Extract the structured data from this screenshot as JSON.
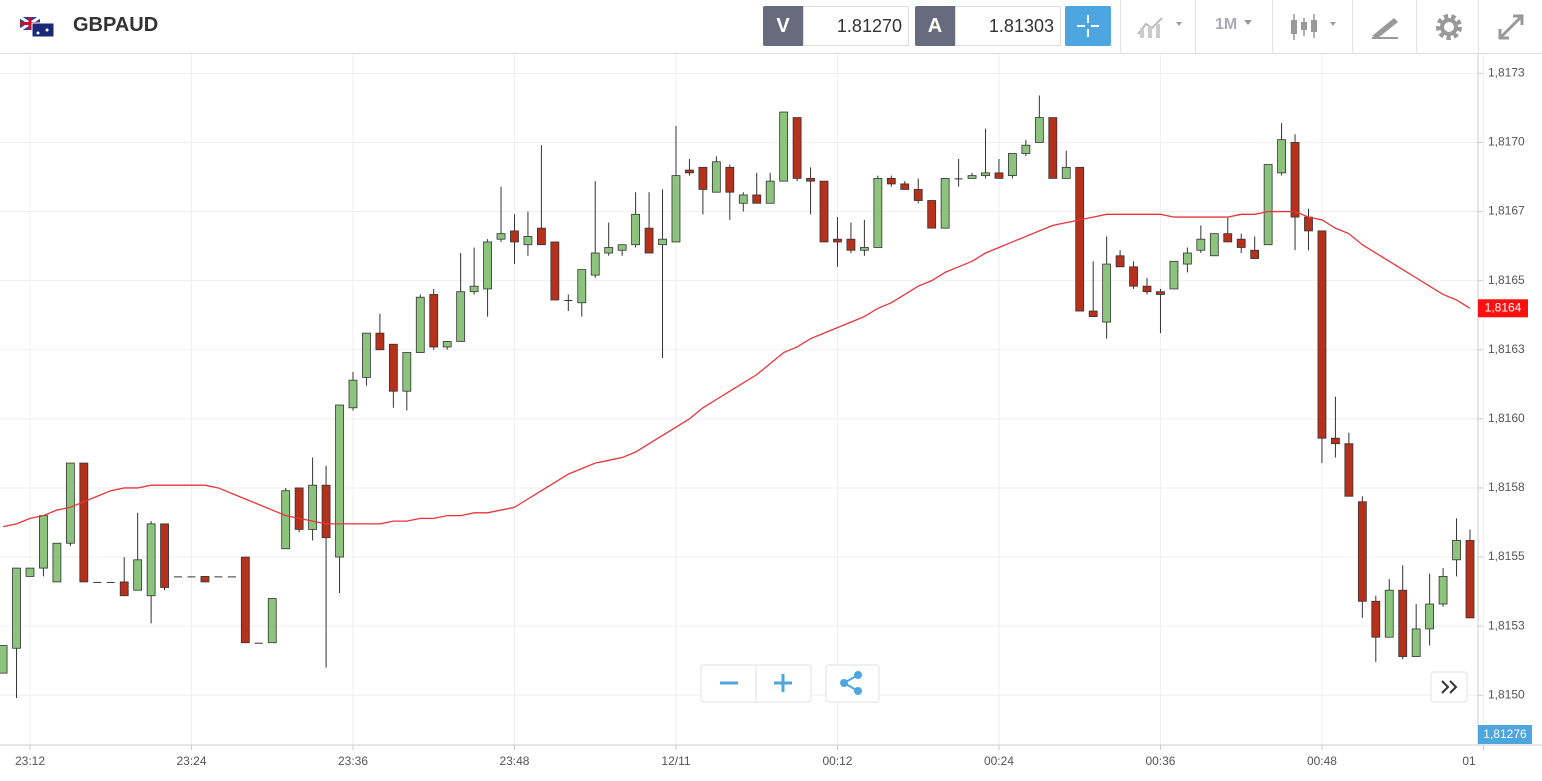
{
  "header": {
    "symbol": "GBPAUD",
    "sell_label": "V",
    "sell_price": "1.81270",
    "buy_label": "A",
    "buy_price": "1.81303",
    "timeframe": "1M"
  },
  "chart_data": {
    "type": "candlestick",
    "categories": [
      null,
      null,
      "23:12",
      null,
      null,
      null,
      null,
      null,
      null,
      null,
      null,
      null,
      null,
      null,
      "23:24",
      null,
      null,
      null,
      null,
      null,
      null,
      null,
      null,
      null,
      null,
      null,
      "23:36",
      null,
      null,
      null,
      null,
      null,
      null,
      null,
      null,
      null,
      null,
      null,
      "23:48",
      null,
      null,
      null,
      null,
      null,
      null,
      null,
      null,
      null,
      null,
      null,
      "12/11",
      null,
      null,
      null,
      null,
      null,
      null,
      null,
      null,
      null,
      null,
      null,
      "00:12",
      null,
      null,
      null,
      null,
      null,
      null,
      null,
      null,
      null,
      null,
      null,
      "00:24",
      null,
      null,
      null,
      null,
      null,
      null,
      null,
      null,
      null,
      null,
      null,
      "00:36",
      null,
      null,
      null,
      null,
      null,
      null,
      null,
      null,
      null,
      null,
      null,
      "00:48",
      null,
      null,
      null,
      null,
      null,
      null,
      null,
      null,
      null,
      null,
      null,
      "01"
    ],
    "open": [
      1.81508,
      1.81517,
      1.81543,
      1.81546,
      1.81541,
      1.81555,
      1.81584,
      1.81541,
      1.81541,
      1.81541,
      1.81538,
      1.81536,
      1.81562,
      1.81543,
      1.81543,
      1.81543,
      1.81543,
      1.81543,
      1.8155,
      1.81519,
      1.81519,
      1.81553,
      1.81575,
      1.8156,
      1.81576,
      1.8155,
      1.81604,
      1.81615,
      1.81631,
      1.81627,
      1.8161,
      1.81624,
      1.81645,
      1.81626,
      1.81628,
      1.81646,
      1.81647,
      1.81665,
      1.81668,
      1.81663,
      1.81669,
      1.81664,
      1.81643,
      1.81642,
      1.81652,
      1.8166,
      1.81661,
      1.81663,
      1.81669,
      1.81663,
      1.81664,
      1.8169,
      1.81691,
      1.81682,
      1.81691,
      1.81678,
      1.81681,
      1.81678,
      1.81686,
      1.81709,
      1.81687,
      1.81686,
      1.81665,
      1.81665,
      1.81661,
      1.81662,
      1.81687,
      1.81685,
      1.81683,
      1.81679,
      1.81669,
      1.81687,
      1.81687,
      1.81688,
      1.81689,
      1.81688,
      1.81696,
      1.817,
      1.81709,
      1.81687,
      1.81691,
      1.81639,
      1.81635,
      1.81659,
      1.81655,
      1.81648,
      1.81646,
      1.81647,
      1.81656,
      1.81661,
      1.81659,
      1.81667,
      1.81665,
      1.81661,
      1.81663,
      1.81689,
      1.817,
      1.81673,
      1.81668,
      1.81593,
      1.81591,
      1.8157,
      1.81534,
      1.81521,
      1.81538,
      1.81514,
      1.81524,
      1.81533,
      1.81549,
      1.81556,
      null
    ],
    "high": [
      1.81518,
      1.81546,
      1.81546,
      1.81565,
      1.81555,
      1.81584,
      1.81584,
      1.81541,
      1.81541,
      1.8155,
      1.81566,
      1.81563,
      1.81562,
      1.81543,
      1.81543,
      1.81543,
      1.81543,
      1.81543,
      1.8155,
      1.81519,
      1.81535,
      1.81575,
      1.81575,
      1.81586,
      1.81583,
      1.81605,
      1.81617,
      1.81631,
      1.81638,
      1.81627,
      1.81624,
      1.81645,
      1.81647,
      1.81628,
      1.8166,
      1.81662,
      1.81665,
      1.81684,
      1.81674,
      1.81675,
      1.81699,
      1.81664,
      1.81645,
      1.81654,
      1.81686,
      1.81671,
      1.81663,
      1.81682,
      1.81682,
      1.81683,
      1.81706,
      1.81694,
      1.81691,
      1.81695,
      1.81692,
      1.81682,
      1.81689,
      1.81689,
      1.81711,
      1.81709,
      1.81691,
      1.81686,
      1.81673,
      1.81671,
      1.81672,
      1.81688,
      1.81688,
      1.81686,
      1.81687,
      1.81679,
      1.81687,
      1.81694,
      1.81689,
      1.81705,
      1.81694,
      1.81696,
      1.81701,
      1.81717,
      1.81709,
      1.81697,
      1.81691,
      1.81657,
      1.81666,
      1.81661,
      1.81657,
      1.81651,
      1.81647,
      1.81657,
      1.81662,
      1.8167,
      1.81667,
      1.81673,
      1.81667,
      1.81666,
      1.81692,
      1.81707,
      1.81703,
      1.81676,
      1.81668,
      1.81608,
      1.81595,
      1.81572,
      1.81536,
      1.81542,
      1.81547,
      1.81533,
      1.81544,
      1.81546,
      1.81564,
      1.8156,
      null
    ],
    "low": [
      1.81508,
      1.81499,
      1.81543,
      1.81543,
      1.81541,
      1.81554,
      1.81541,
      1.81541,
      1.81541,
      1.81536,
      1.81538,
      1.81526,
      1.81538,
      1.81543,
      1.81543,
      1.81541,
      1.81543,
      1.81543,
      1.81519,
      1.81519,
      1.81519,
      1.81553,
      1.81559,
      1.81556,
      1.8151,
      1.81537,
      1.81603,
      1.81612,
      1.81625,
      1.81604,
      1.81603,
      1.81624,
      1.81625,
      1.81625,
      1.81628,
      1.81645,
      1.81637,
      1.81664,
      1.81656,
      1.81659,
      1.81663,
      1.81643,
      1.81639,
      1.81637,
      1.81651,
      1.81659,
      1.81659,
      1.81662,
      1.8166,
      1.81622,
      1.81664,
      1.81688,
      1.81674,
      1.81682,
      1.81672,
      1.81675,
      1.81678,
      1.81678,
      1.81686,
      1.81686,
      1.81674,
      1.81664,
      1.81655,
      1.8166,
      1.81659,
      1.81662,
      1.81684,
      1.81683,
      1.81678,
      1.81669,
      1.81669,
      1.81684,
      1.81687,
      1.81687,
      1.81687,
      1.81687,
      1.81695,
      1.817,
      1.81687,
      1.81687,
      1.81639,
      1.81637,
      1.81629,
      1.81655,
      1.81647,
      1.81645,
      1.81631,
      1.81647,
      1.81653,
      1.8166,
      1.81659,
      1.81664,
      1.8166,
      1.81658,
      1.81663,
      1.81688,
      1.81661,
      1.81661,
      1.81584,
      1.81586,
      1.81572,
      1.81528,
      1.81512,
      1.81521,
      1.81513,
      1.81514,
      1.81518,
      1.81532,
      1.81543,
      1.81528,
      null
    ],
    "close": [
      1.81518,
      1.81546,
      1.81546,
      1.81565,
      1.81555,
      1.81584,
      1.81541,
      1.81541,
      1.81541,
      1.81536,
      1.81549,
      1.81562,
      1.81539,
      1.81543,
      1.81543,
      1.81541,
      1.81543,
      1.81543,
      1.81519,
      1.81519,
      1.81535,
      1.81574,
      1.8156,
      1.81576,
      1.81557,
      1.81605,
      1.81614,
      1.81631,
      1.81625,
      1.8161,
      1.81624,
      1.81644,
      1.81626,
      1.81628,
      1.81646,
      1.81648,
      1.81664,
      1.81667,
      1.81664,
      1.81666,
      1.81663,
      1.81643,
      1.81643,
      1.81654,
      1.8166,
      1.81662,
      1.81663,
      1.81674,
      1.8166,
      1.81665,
      1.81688,
      1.81689,
      1.81683,
      1.81693,
      1.81682,
      1.81681,
      1.81678,
      1.81686,
      1.81711,
      1.81687,
      1.81686,
      1.81664,
      1.81664,
      1.81661,
      1.81662,
      1.81687,
      1.81685,
      1.81683,
      1.81679,
      1.81669,
      1.81687,
      1.81687,
      1.81688,
      1.81689,
      1.81687,
      1.81696,
      1.81699,
      1.81709,
      1.81687,
      1.81691,
      1.81639,
      1.81637,
      1.81656,
      1.81655,
      1.81648,
      1.81646,
      1.81645,
      1.81657,
      1.8166,
      1.81665,
      1.81667,
      1.81664,
      1.81662,
      1.81658,
      1.81692,
      1.81701,
      1.81673,
      1.81668,
      1.81593,
      1.81591,
      1.81572,
      1.81534,
      1.81521,
      1.81538,
      1.81514,
      1.81524,
      1.81533,
      1.81543,
      1.81556,
      1.81528,
      null
    ],
    "up_color": "#8cc47e",
    "down_color": "#b5311c",
    "flat_color": "#333333",
    "overlay": {
      "type": "line",
      "color": "#e8353a",
      "values": [
        1.81561,
        1.81562,
        1.81564,
        1.81565,
        1.81567,
        1.81568,
        1.8157,
        1.81572,
        1.81574,
        1.81575,
        1.81575,
        1.81576,
        1.81576,
        1.81576,
        1.81576,
        1.81576,
        1.81575,
        1.81573,
        1.81571,
        1.81569,
        1.81567,
        1.81565,
        1.81564,
        1.81563,
        1.81562,
        1.81562,
        1.81562,
        1.81562,
        1.81562,
        1.81563,
        1.81563,
        1.81564,
        1.81564,
        1.81565,
        1.81565,
        1.81566,
        1.81566,
        1.81567,
        1.81568,
        1.81571,
        1.81574,
        1.81577,
        1.8158,
        1.81582,
        1.81584,
        1.81585,
        1.81586,
        1.81588,
        1.81591,
        1.81594,
        1.81597,
        1.816,
        1.81604,
        1.81607,
        1.8161,
        1.81613,
        1.81616,
        1.8162,
        1.81624,
        1.81626,
        1.81629,
        1.81631,
        1.81633,
        1.81635,
        1.81637,
        1.8164,
        1.81642,
        1.81645,
        1.81648,
        1.8165,
        1.81653,
        1.81655,
        1.81657,
        1.8166,
        1.81662,
        1.81664,
        1.81666,
        1.81668,
        1.8167,
        1.81671,
        1.81672,
        1.81673,
        1.81674,
        1.81674,
        1.81674,
        1.81674,
        1.81674,
        1.81673,
        1.81673,
        1.81673,
        1.81673,
        1.81673,
        1.81674,
        1.81674,
        1.81675,
        1.81675,
        1.81675,
        1.81673,
        1.81672,
        1.81669,
        1.81667,
        1.81663,
        1.8166,
        1.81657,
        1.81654,
        1.81651,
        1.81648,
        1.81645,
        1.81643,
        1.8164,
        null
      ]
    },
    "last_tag": {
      "value": 1.8164,
      "label": "1,8164"
    },
    "bottom_tag": "1,81276",
    "ylim": [
      1.81482,
      1.81732
    ],
    "yticks": [
      {
        "value": 1.81725,
        "label": "1,8173"
      },
      {
        "value": 1.817,
        "label": "1,8170"
      },
      {
        "value": 1.81675,
        "label": "1,8167"
      },
      {
        "value": 1.8165,
        "label": "1,8165"
      },
      {
        "value": 1.81625,
        "label": "1,8163"
      },
      {
        "value": 1.816,
        "label": "1,8160"
      },
      {
        "value": 1.81575,
        "label": "1,8158"
      },
      {
        "value": 1.8155,
        "label": "1,8155"
      },
      {
        "value": 1.81525,
        "label": "1,8153"
      },
      {
        "value": 1.815,
        "label": "1,8150"
      }
    ],
    "grid": true
  }
}
